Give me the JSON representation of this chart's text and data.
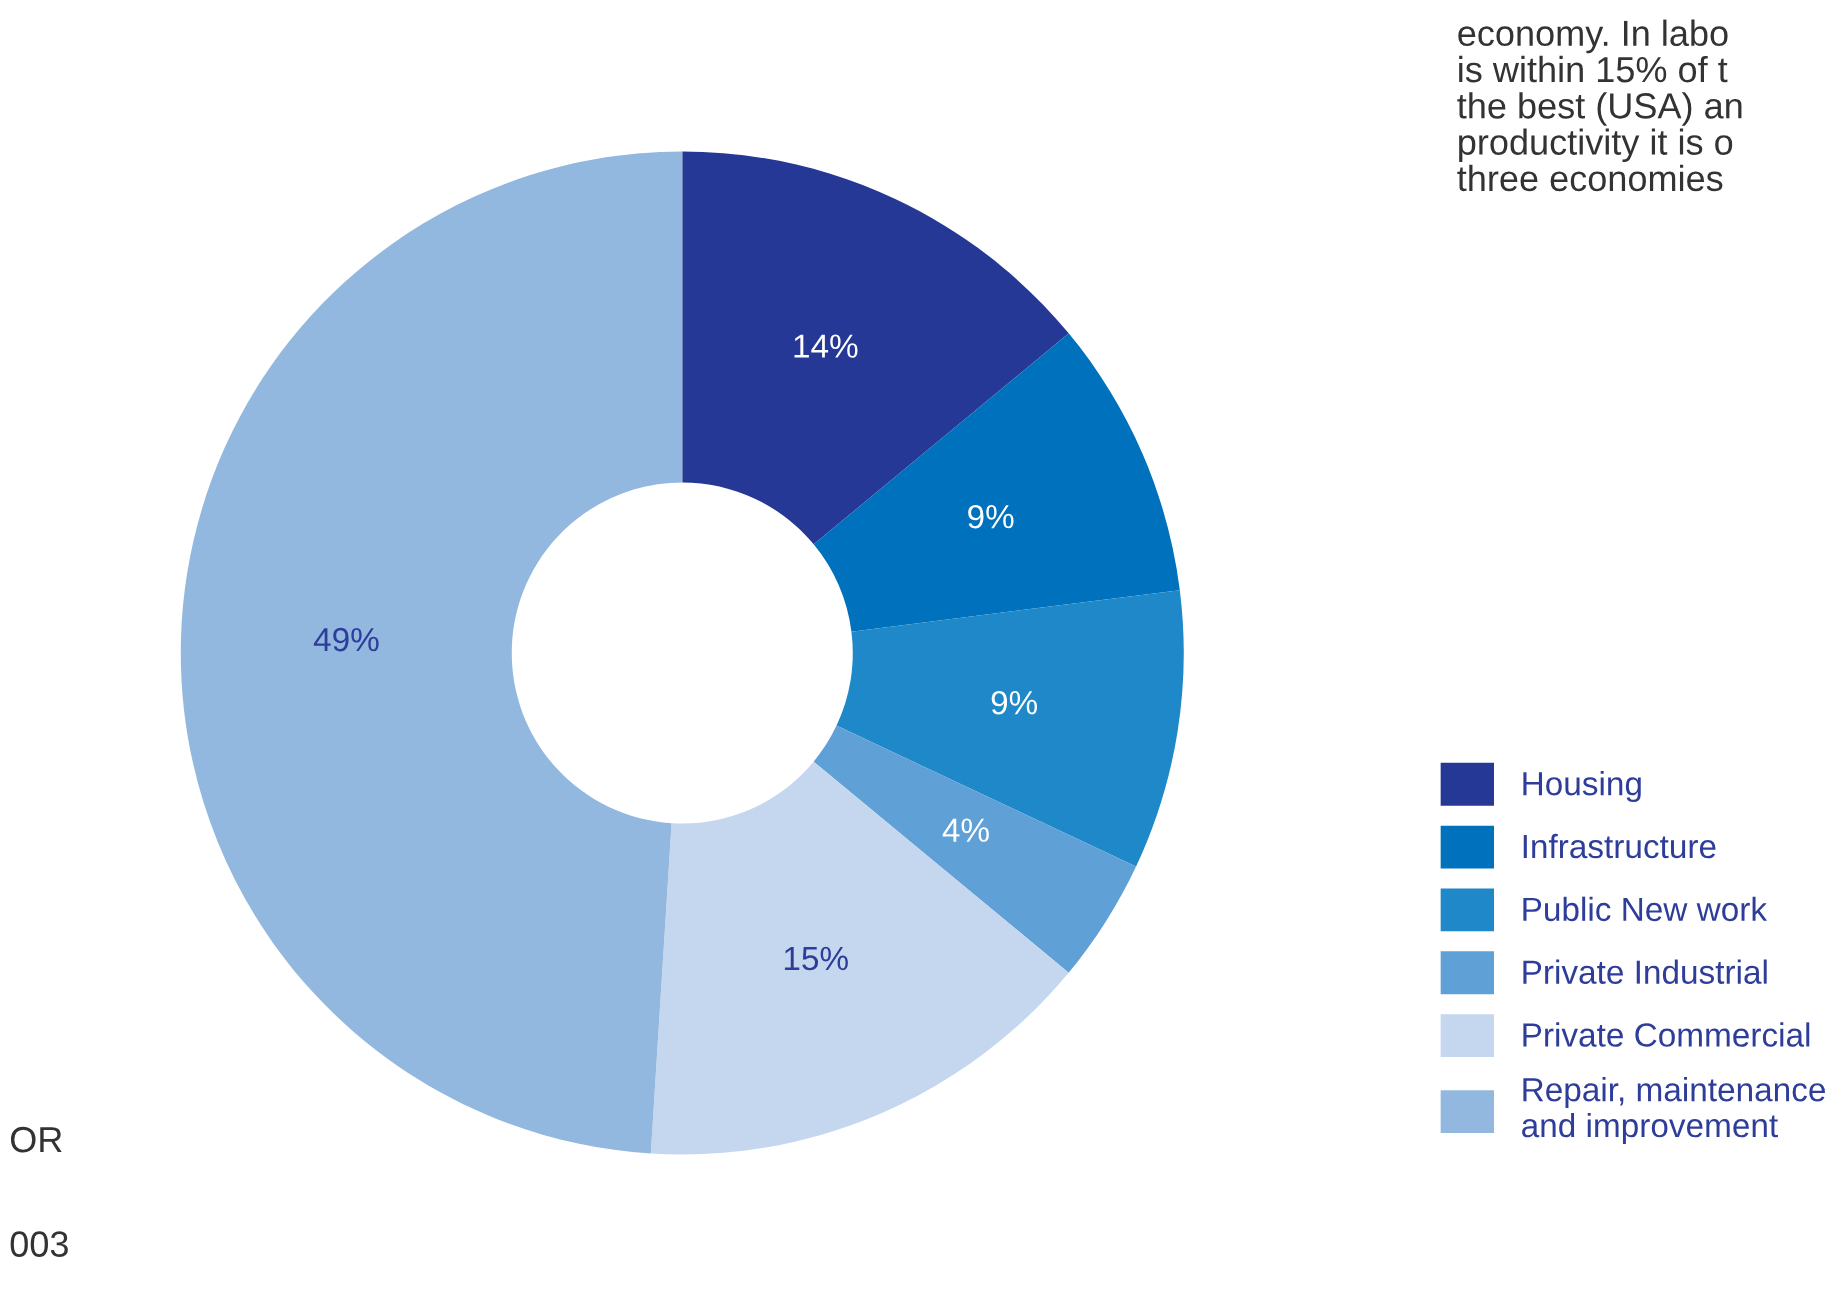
{
  "chart_data": {
    "type": "donut",
    "categories": [
      "Housing",
      "Infrastructure",
      "Public New work",
      "Private Industrial",
      "Private Commercial",
      "Repair, maintenance\nand improvement"
    ],
    "values": [
      14,
      9,
      9,
      4,
      15,
      49
    ],
    "colors": [
      "#263896",
      "#0071bc",
      "#1e88c8",
      "#5fa0d6",
      "#c5d7ef",
      "#92b8df"
    ],
    "value_labels": [
      "14%",
      "9%",
      "9%",
      "4%",
      "15%",
      "49%"
    ],
    "legend": "right",
    "annotations": [
      "economy. In labo\nis within 15% of t\nthe best (USA) an\nproductivity it is o\nthree economies",
      "OR",
      "003"
    ]
  }
}
